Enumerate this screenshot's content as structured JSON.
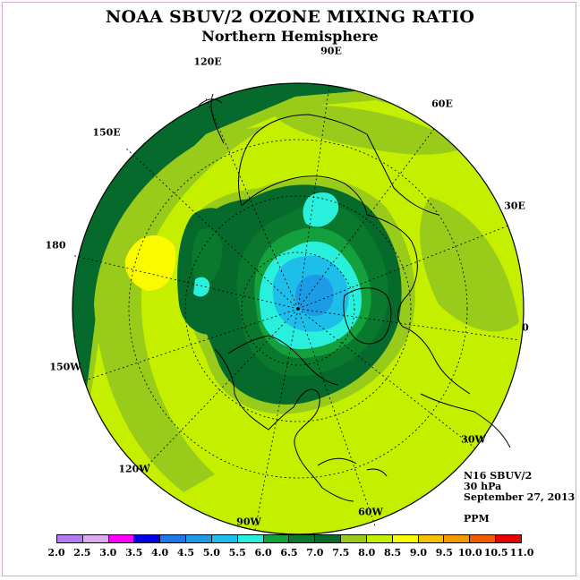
{
  "title": "NOAA SBUV/2 OZONE MIXING RATIO",
  "subtitle": "Northern Hemisphere",
  "longitude_labels": [
    "90E",
    "60E",
    "30E",
    "0",
    "30W",
    "60W",
    "90W",
    "120W",
    "150W",
    "180",
    "150E",
    "120E"
  ],
  "info": {
    "instrument": "N16 SBUV/2",
    "level": "30 hPa",
    "date": "September 27, 2013",
    "units": "PPM"
  },
  "colorbar": {
    "labels": [
      "2.0",
      "2.5",
      "3.0",
      "3.5",
      "4.0",
      "4.5",
      "5.0",
      "5.5",
      "6.0",
      "6.5",
      "7.0",
      "7.5",
      "8.0",
      "8.5",
      "9.0",
      "9.5",
      "10.0",
      "10.5",
      "11.0"
    ],
    "colors": [
      "#b07cf0",
      "#dcaaf0",
      "#ff00ff",
      "#0000e6",
      "#1e78e6",
      "#1e9be6",
      "#1ebeeb",
      "#28f0dc",
      "#14a03c",
      "#0a782d",
      "#066a2c",
      "#99cc1a",
      "#c4f000",
      "#fafa00",
      "#f2c200",
      "#f29a00",
      "#f25a00",
      "#e60000",
      "#7a5a3c"
    ]
  },
  "colors": {
    "background_field": "#c4f000",
    "outer_ring": "#066a2c",
    "frame": "#d9a6d9"
  }
}
